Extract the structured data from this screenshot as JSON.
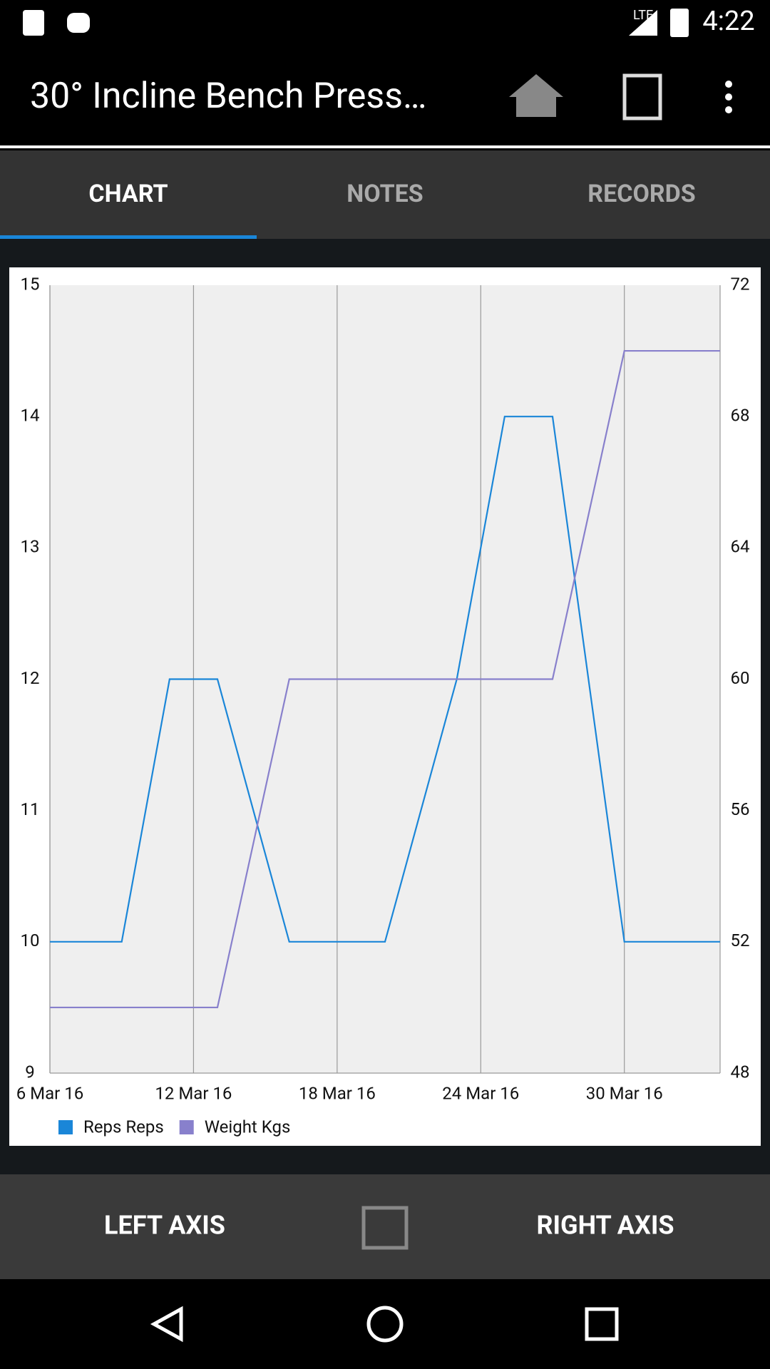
{
  "status_bar": {
    "network": "LTE",
    "time": "4:22"
  },
  "app_bar": {
    "title": "30° Incline Bench Press…"
  },
  "tabs": [
    "CHART",
    "NOTES",
    "RECORDS"
  ],
  "chart_data": {
    "type": "line",
    "xlim": [
      "2016-03-06",
      "2016-04-03"
    ],
    "xticks": [
      {
        "value": "2016-03-06",
        "label": "6 Mar 16"
      },
      {
        "value": "2016-03-12",
        "label": "12 Mar 16"
      },
      {
        "value": "2016-03-18",
        "label": "18 Mar 16"
      },
      {
        "value": "2016-03-24",
        "label": "24 Mar 16"
      },
      {
        "value": "2016-03-30",
        "label": "30 Mar 16"
      }
    ],
    "ylim": [
      9,
      15
    ],
    "yticks": [
      9,
      10,
      11,
      12,
      13,
      14,
      15
    ],
    "y2lim": [
      48,
      72
    ],
    "y2ticks": [
      48,
      52,
      56,
      60,
      64,
      68,
      72
    ],
    "grid": true,
    "legend": "bottom-left",
    "series": [
      {
        "name": "Reps Reps",
        "color": "#1a86d8",
        "axis": "y",
        "x": [
          "2016-03-06",
          "2016-03-09",
          "2016-03-11",
          "2016-03-13",
          "2016-03-16",
          "2016-03-20",
          "2016-03-23",
          "2016-03-25",
          "2016-03-27",
          "2016-03-30",
          "2016-04-03"
        ],
        "values": [
          10,
          10,
          12,
          12,
          10,
          10,
          12,
          14,
          14,
          10,
          10
        ]
      },
      {
        "name": "Weight Kgs",
        "color": "#8880cc",
        "axis": "y2",
        "x": [
          "2016-03-06",
          "2016-03-13",
          "2016-03-16",
          "2016-03-27",
          "2016-03-30",
          "2016-04-03"
        ],
        "values": [
          50,
          50,
          60,
          60,
          70,
          70
        ]
      }
    ]
  },
  "bottom_bar": {
    "left": "LEFT AXIS",
    "right": "RIGHT AXIS"
  }
}
